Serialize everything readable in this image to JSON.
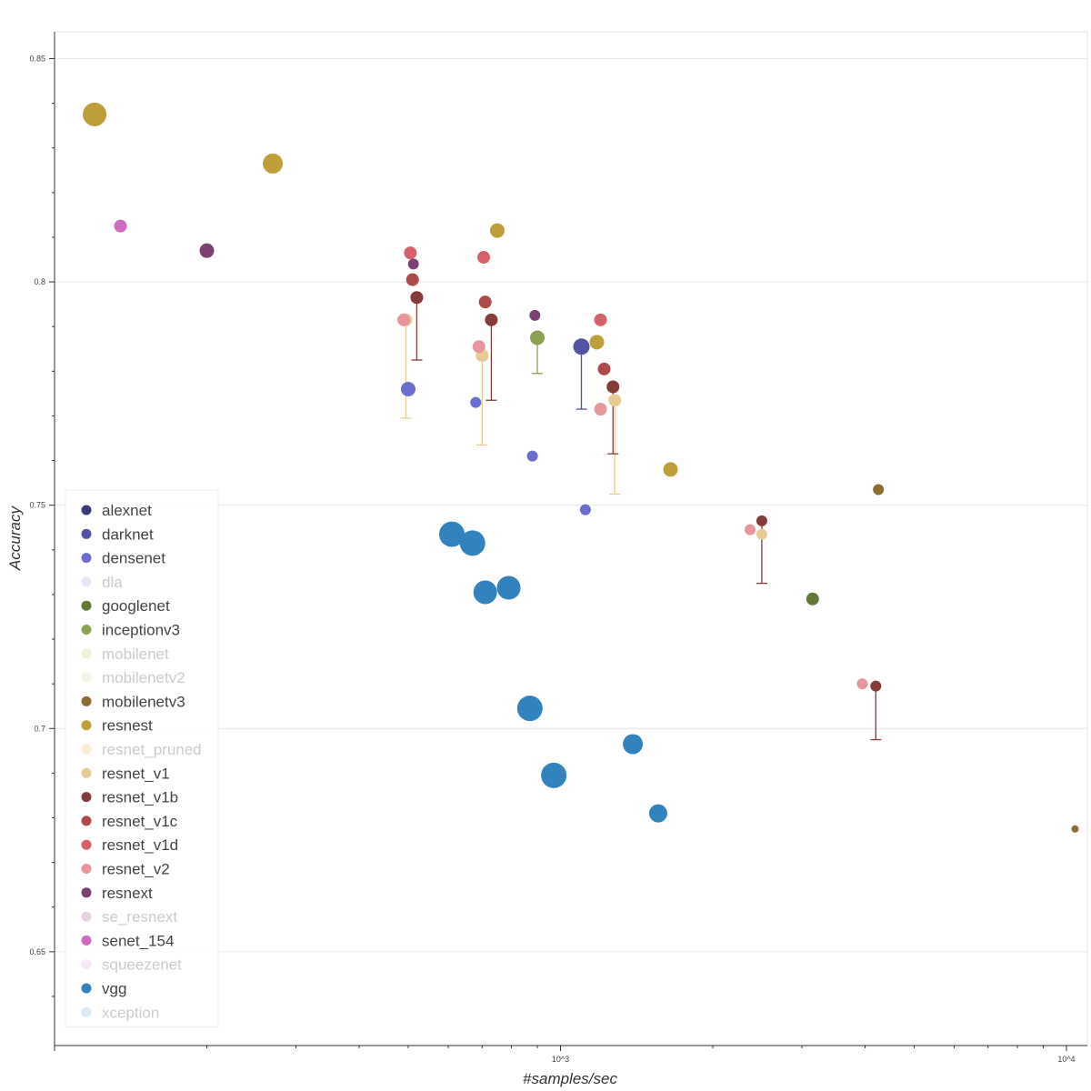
{
  "chart_data": {
    "type": "scatter",
    "title": "",
    "xlabel": "#samples/sec",
    "ylabel": "Accuracy",
    "xscale": "log",
    "xlim": [
      100,
      11000
    ],
    "ylim": [
      0.629,
      0.856
    ],
    "x_ticks": [
      {
        "value": 1000,
        "label": "10^3"
      },
      {
        "value": 10000,
        "label": "10^4"
      }
    ],
    "y_ticks": [
      {
        "value": 0.65,
        "label": "0.65"
      },
      {
        "value": 0.7,
        "label": "0.7"
      },
      {
        "value": 0.75,
        "label": "0.75"
      },
      {
        "value": 0.8,
        "label": "0.8"
      },
      {
        "value": 0.85,
        "label": "0.85"
      }
    ],
    "grid": true,
    "legend_position": "bottom-left",
    "series": [
      {
        "name": "alexnet",
        "color": "#393b79",
        "visible": true,
        "points": []
      },
      {
        "name": "darknet",
        "color": "#5254a3",
        "visible": true,
        "points": [
          {
            "x": 1100,
            "y": 0.7855,
            "size": 9,
            "err_low": 0.7715
          }
        ]
      },
      {
        "name": "densenet",
        "color": "#6b6ecf",
        "visible": true,
        "points": [
          {
            "x": 500,
            "y": 0.776,
            "size": 8
          },
          {
            "x": 680,
            "y": 0.773,
            "size": 6
          },
          {
            "x": 880,
            "y": 0.761,
            "size": 6
          },
          {
            "x": 1120,
            "y": 0.749,
            "size": 6
          }
        ]
      },
      {
        "name": "dla",
        "color": "#9c9ede",
        "visible": false,
        "points": []
      },
      {
        "name": "googlenet",
        "color": "#637939",
        "visible": true,
        "points": [
          {
            "x": 3150,
            "y": 0.729,
            "size": 7
          }
        ]
      },
      {
        "name": "inceptionv3",
        "color": "#8ca252",
        "visible": true,
        "points": [
          {
            "x": 900,
            "y": 0.7875,
            "size": 8,
            "err_low": 0.7795
          }
        ]
      },
      {
        "name": "mobilenet",
        "color": "#b5cf6b",
        "visible": false,
        "points": []
      },
      {
        "name": "mobilenetv2",
        "color": "#cedb9c",
        "visible": false,
        "points": []
      },
      {
        "name": "mobilenetv3",
        "color": "#8c6d31",
        "visible": true,
        "points": [
          {
            "x": 4250,
            "y": 0.7535,
            "size": 6
          },
          {
            "x": 10400,
            "y": 0.6775,
            "size": 4
          }
        ]
      },
      {
        "name": "resnest",
        "color": "#bd9e39",
        "visible": true,
        "points": [
          {
            "x": 120,
            "y": 0.8375,
            "size": 13
          },
          {
            "x": 270,
            "y": 0.8265,
            "size": 11
          },
          {
            "x": 750,
            "y": 0.8115,
            "size": 8
          },
          {
            "x": 1180,
            "y": 0.7865,
            "size": 8
          },
          {
            "x": 1650,
            "y": 0.758,
            "size": 8
          }
        ]
      },
      {
        "name": "resnet_pruned",
        "color": "#e7ba52",
        "visible": false,
        "points": []
      },
      {
        "name": "resnet_v1",
        "color": "#e7cb94",
        "visible": true,
        "points": [
          {
            "x": 495,
            "y": 0.7915,
            "size": 7,
            "err_low": 0.7695
          },
          {
            "x": 700,
            "y": 0.7835,
            "size": 7,
            "err_low": 0.7635
          },
          {
            "x": 1280,
            "y": 0.7735,
            "size": 7,
            "err_low": 0.7525
          },
          {
            "x": 2500,
            "y": 0.7435,
            "size": 6
          }
        ]
      },
      {
        "name": "resnet_v1b",
        "color": "#843c39",
        "visible": true,
        "points": [
          {
            "x": 520,
            "y": 0.7965,
            "size": 7,
            "err_low": 0.7825
          },
          {
            "x": 730,
            "y": 0.7915,
            "size": 7,
            "err_low": 0.7735
          },
          {
            "x": 1270,
            "y": 0.7765,
            "size": 7,
            "err_low": 0.7615
          },
          {
            "x": 2500,
            "y": 0.7465,
            "size": 6,
            "err_low": 0.7325
          },
          {
            "x": 4200,
            "y": 0.7095,
            "size": 6,
            "err_low": 0.6975
          }
        ]
      },
      {
        "name": "resnet_v1c",
        "color": "#ad494a",
        "visible": true,
        "points": [
          {
            "x": 510,
            "y": 0.8005,
            "size": 7
          },
          {
            "x": 710,
            "y": 0.7955,
            "size": 7
          },
          {
            "x": 1220,
            "y": 0.7805,
            "size": 7
          }
        ]
      },
      {
        "name": "resnet_v1d",
        "color": "#d6616b",
        "visible": true,
        "points": [
          {
            "x": 505,
            "y": 0.8065,
            "size": 7
          },
          {
            "x": 705,
            "y": 0.8055,
            "size": 7
          },
          {
            "x": 1200,
            "y": 0.7915,
            "size": 7
          }
        ]
      },
      {
        "name": "resnet_v2",
        "color": "#e7969c",
        "visible": true,
        "points": [
          {
            "x": 490,
            "y": 0.7915,
            "size": 7
          },
          {
            "x": 690,
            "y": 0.7855,
            "size": 7
          },
          {
            "x": 1200,
            "y": 0.7715,
            "size": 7
          },
          {
            "x": 2370,
            "y": 0.7445,
            "size": 6
          },
          {
            "x": 3950,
            "y": 0.71,
            "size": 6
          }
        ]
      },
      {
        "name": "resnext",
        "color": "#7b4173",
        "visible": true,
        "points": [
          {
            "x": 200,
            "y": 0.807,
            "size": 8
          },
          {
            "x": 512,
            "y": 0.804,
            "size": 6
          },
          {
            "x": 890,
            "y": 0.7925,
            "size": 6
          }
        ]
      },
      {
        "name": "se_resnext",
        "color": "#a55194",
        "visible": false,
        "points": []
      },
      {
        "name": "senet_154",
        "color": "#ce6dbd",
        "visible": true,
        "points": [
          {
            "x": 135,
            "y": 0.8125,
            "size": 7
          }
        ]
      },
      {
        "name": "squeezenet",
        "color": "#de9ed6",
        "visible": false,
        "points": []
      },
      {
        "name": "vgg",
        "color": "#3182bd",
        "visible": true,
        "points": [
          {
            "x": 610,
            "y": 0.7435,
            "size": 14
          },
          {
            "x": 670,
            "y": 0.7415,
            "size": 14
          },
          {
            "x": 710,
            "y": 0.7305,
            "size": 13
          },
          {
            "x": 790,
            "y": 0.7315,
            "size": 13
          },
          {
            "x": 870,
            "y": 0.7045,
            "size": 14
          },
          {
            "x": 970,
            "y": 0.6895,
            "size": 14
          },
          {
            "x": 1390,
            "y": 0.6965,
            "size": 11
          },
          {
            "x": 1560,
            "y": 0.681,
            "size": 10
          }
        ]
      },
      {
        "name": "xception",
        "color": "#6baed6",
        "visible": false,
        "points": []
      }
    ]
  }
}
